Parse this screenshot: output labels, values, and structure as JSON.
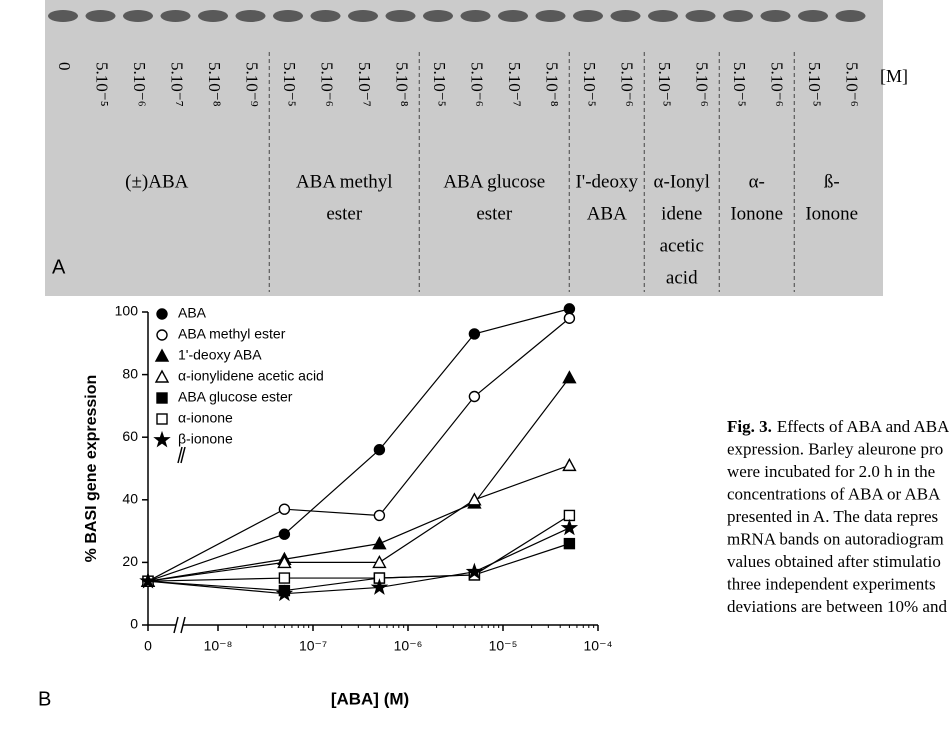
{
  "panel_labels": [
    "A",
    "B"
  ],
  "blot": {
    "unit": "[M]",
    "groups": [
      {
        "lines": [
          "(±)ABA"
        ],
        "lanes": [
          "0",
          "5.10⁻⁵",
          "5.10⁻⁶",
          "5.10⁻⁷",
          "5.10⁻⁸",
          "5.10⁻⁹"
        ]
      },
      {
        "lines": [
          "ABA methyl",
          "ester"
        ],
        "lanes": [
          "5.10⁻⁵",
          "5.10⁻⁶",
          "5.10⁻⁷",
          "5.10⁻⁸"
        ]
      },
      {
        "lines": [
          "ABA glucose",
          "ester"
        ],
        "lanes": [
          "5.10⁻⁵",
          "5.10⁻⁶",
          "5.10⁻⁷",
          "5.10⁻⁸"
        ]
      },
      {
        "lines": [
          "I'-deoxy",
          "ABA"
        ],
        "lanes": [
          "5.10⁻⁵",
          "5.10⁻⁶"
        ]
      },
      {
        "lines": [
          "α-Ionyl",
          "idene",
          "acetic",
          "acid"
        ],
        "lanes": [
          "5.10⁻⁵",
          "5.10⁻⁶"
        ]
      },
      {
        "lines": [
          "α-",
          "Ionone"
        ],
        "lanes": [
          "5.10⁻⁵",
          "5.10⁻⁶"
        ]
      },
      {
        "lines": [
          "ß-",
          "Ionone"
        ],
        "lanes": [
          "5.10⁻⁵",
          "5.10⁻⁶"
        ]
      }
    ]
  },
  "chart_data": {
    "type": "line",
    "x_label": "[ABA] (M)",
    "y_label": "% BASI gene expression",
    "x": [
      0,
      5e-08,
      5e-07,
      5e-06,
      5e-05
    ],
    "xscale": "log",
    "x_break": true,
    "xlim": [
      0,
      0.0001
    ],
    "xticks": [
      0,
      {
        "value": 1e-08,
        "label": "10⁻⁸"
      },
      {
        "value": 1e-07,
        "label": "10⁻⁷"
      },
      {
        "value": 1e-06,
        "label": "10⁻⁶"
      },
      {
        "value": 1e-05,
        "label": "10⁻⁵"
      },
      {
        "value": 0.0001,
        "label": "10⁻⁴"
      }
    ],
    "ylim": [
      0,
      100
    ],
    "yticks": [
      0,
      20,
      40,
      60,
      80,
      100
    ],
    "legend": "upper left",
    "series": [
      {
        "name": "ABA",
        "color": "#000000",
        "marker": "circle-filled",
        "values": [
          14,
          29,
          56,
          93,
          101
        ]
      },
      {
        "name": "ABA methyl ester",
        "color": "#000000",
        "marker": "circle-open",
        "values": [
          14,
          37,
          35,
          73,
          98
        ]
      },
      {
        "name": "1'-deoxy ABA",
        "color": "#000000",
        "marker": "triangle-filled",
        "values": [
          14,
          21,
          26,
          39,
          79
        ]
      },
      {
        "name": "α-ionylidene acetic acid",
        "color": "#000000",
        "marker": "triangle-open",
        "values": [
          14,
          20,
          20,
          40,
          51
        ]
      },
      {
        "name": "ABA glucose ester",
        "color": "#000000",
        "marker": "square-filled",
        "values": [
          14,
          11,
          15,
          16,
          26
        ]
      },
      {
        "name": "α-ionone",
        "color": "#000000",
        "marker": "square-open",
        "values": [
          14,
          15,
          15,
          16,
          35
        ]
      },
      {
        "name": "β-ionone",
        "color": "#000000",
        "marker": "star",
        "values": [
          14,
          10,
          12,
          17,
          31
        ]
      }
    ]
  },
  "caption": {
    "label": "Fig. 3.",
    "lines": [
      "Effects of ABA and ABA",
      "expression. Barley aleurone pro",
      "were incubated for 2.0 h in the",
      "concentrations of ABA or ABA",
      "presented in A. The data repres",
      "mRNA bands on autoradiogram",
      "values obtained after stimulatio",
      "three independent experiments",
      "deviations are between 10% and"
    ]
  }
}
